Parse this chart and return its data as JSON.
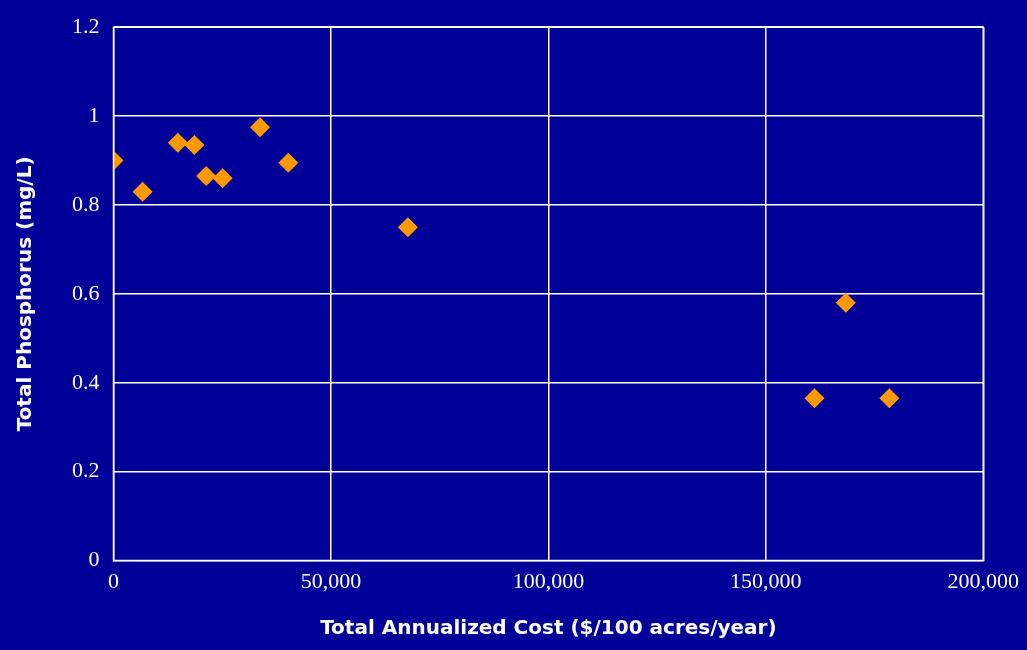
{
  "chart_data": {
    "type": "scatter",
    "xlabel": "Total Annualized Cost ($/100 acres/year)",
    "ylabel": "Total Phosphorus (mg/L)",
    "x": [
      0,
      6700,
      14800,
      18600,
      21300,
      25100,
      33700,
      40200,
      67700,
      161200,
      168400,
      178400
    ],
    "series": [
      {
        "color": "#ff9900",
        "values": [
          0.9,
          0.83,
          0.94,
          0.935,
          0.865,
          0.86,
          0.975,
          0.895,
          0.75,
          0.365,
          0.58,
          0.365
        ]
      }
    ],
    "xlim": [
      0,
      200000
    ],
    "xticks": [
      {
        "value": 0,
        "label": "0"
      },
      {
        "value": 50000,
        "label": "50,000"
      },
      {
        "value": 100000,
        "label": "100,000"
      },
      {
        "value": 150000,
        "label": "150,000"
      },
      {
        "value": 200000,
        "label": "200,000"
      }
    ],
    "ylim": [
      0,
      1.2
    ],
    "yticks": [
      0,
      0.2,
      0.4,
      0.6,
      0.8,
      1,
      1.2
    ],
    "grid": true,
    "legend": false,
    "marker": "diamond"
  }
}
